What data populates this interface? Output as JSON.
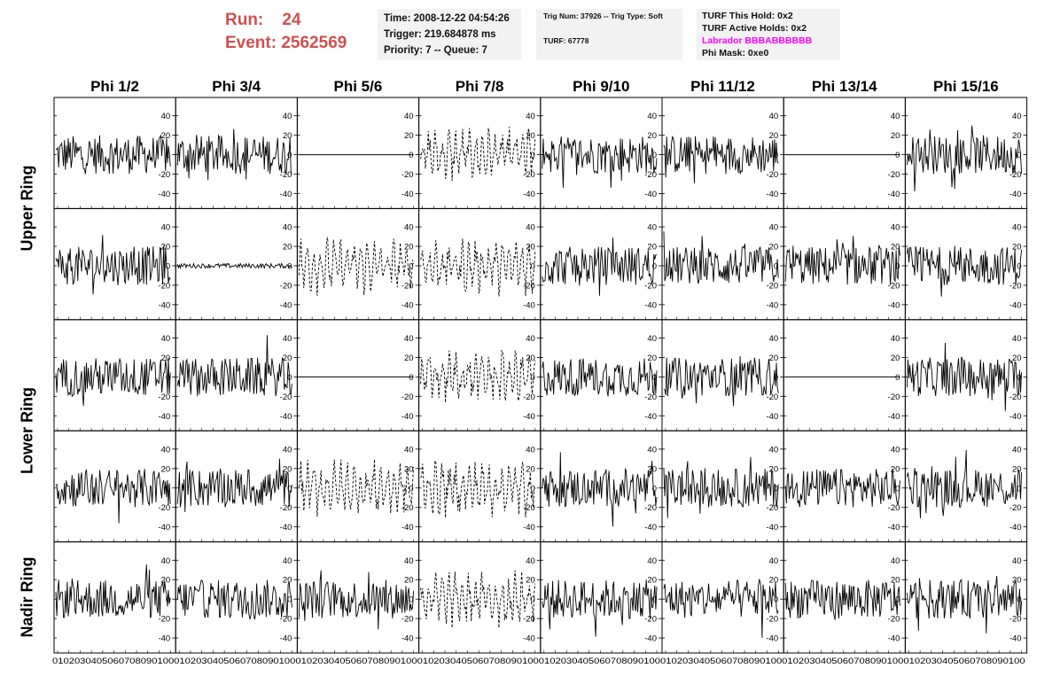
{
  "run": {
    "run_label": "Run:",
    "run_value": "24",
    "event_label": "Event:",
    "event_value": "2562569"
  },
  "time_box": {
    "time": "Time: 2008-12-22 04:54:26",
    "trigger": "Trigger: 219.684878 ms",
    "priority": "Priority: 7 -- Queue: 7"
  },
  "trig_box": {
    "trig": "Trig Num: 37926 -- Trig Type: Soft",
    "turf": "TURF: 67778"
  },
  "turf_box": {
    "this_hold": "TURF This Hold: 0x2",
    "active_holds": "TURF Active Holds: 0x2",
    "labrador": "Labrador BBBABBBBBB",
    "phi_mask": "Phi Mask: 0xe0",
    "labrador_color": "#ff00ff"
  },
  "columns": [
    "Phi 1/2",
    "Phi 3/4",
    "Phi 5/6",
    "Phi 7/8",
    "Phi 9/10",
    "Phi 11/12",
    "Phi 13/14",
    "Phi 15/16"
  ],
  "rings": [
    "Upper Ring",
    "Lower Ring",
    "Nadir Ring"
  ],
  "axes": {
    "y_ticks": [
      "40",
      "20",
      "0",
      "-20",
      "-40"
    ],
    "x_tick_strip": "0102030405060708090100"
  },
  "panel_types": [
    [
      "solid",
      "solid",
      "flat",
      "dashed",
      "solid",
      "solid",
      "flat",
      "solid"
    ],
    [
      "solid",
      "quiet",
      "dashed",
      "dashed",
      "solid",
      "solid",
      "solid",
      "solid"
    ],
    [
      "solid",
      "solid",
      "flat",
      "dashed",
      "solid",
      "solid",
      "flat",
      "solid"
    ],
    [
      "solid",
      "solid",
      "dashed",
      "dashed",
      "solid",
      "solid",
      "solid",
      "solid"
    ],
    [
      "solid",
      "solid",
      "solid",
      "dashed",
      "solid",
      "solid",
      "solid",
      "solid"
    ]
  ]
}
